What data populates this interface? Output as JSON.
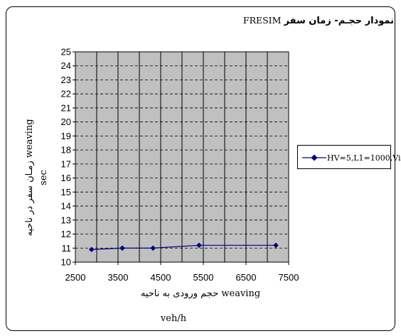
{
  "chart_title": {
    "persian": "نمودار حجـم- زمان سفر",
    "english": "FRESIM"
  },
  "chart_data": {
    "type": "line",
    "title": "نمودار حجـم- زمان سفر FRESIM",
    "xlabel": "حجم ورودی به ناحیه weaving",
    "xunit": "veh/h",
    "ylabel": "زمـان سفر در ناحیه weaving",
    "yunit": "sec",
    "xlim": [
      2500,
      7500
    ],
    "ylim": [
      10,
      25
    ],
    "xticks": [
      "2500",
      "3500",
      "4500",
      "5500",
      "6500",
      "7500"
    ],
    "yticks": [
      "10",
      "11",
      "12",
      "13",
      "14",
      "15",
      "16",
      "17",
      "18",
      "19",
      "20",
      "21",
      "22",
      "23",
      "24",
      "25"
    ],
    "grid": true,
    "plot_background": "#c0c0c0",
    "legend_position": "right",
    "series": [
      {
        "name": "HV=5,L1=1000,Vi",
        "color": "#000080",
        "marker": "diamond",
        "x": [
          2880,
          3600,
          4320,
          5400,
          7200
        ],
        "y": [
          10.9,
          11.0,
          11.0,
          11.2,
          11.2
        ]
      }
    ]
  }
}
